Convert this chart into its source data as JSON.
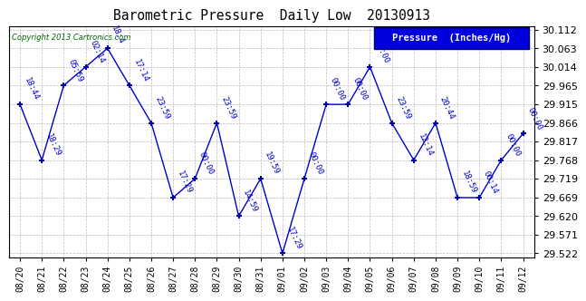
{
  "title": "Barometric Pressure  Daily Low  20130913",
  "copyright": "Copyright 2013 Cartronics.com",
  "legend_label": "Pressure  (Inches/Hg)",
  "dates": [
    "08/20",
    "08/21",
    "08/22",
    "08/23",
    "08/24",
    "08/25",
    "08/26",
    "08/27",
    "08/28",
    "08/29",
    "08/30",
    "08/31",
    "09/01",
    "09/02",
    "09/03",
    "09/04",
    "09/05",
    "09/06",
    "09/07",
    "09/08",
    "09/09",
    "09/10",
    "09/11",
    "09/12"
  ],
  "values": [
    29.915,
    29.768,
    29.965,
    30.014,
    30.063,
    29.965,
    29.866,
    29.669,
    29.719,
    29.866,
    29.62,
    29.719,
    29.522,
    29.719,
    29.915,
    29.915,
    30.014,
    29.866,
    29.768,
    29.866,
    29.669,
    29.669,
    29.768,
    29.838
  ],
  "labels": [
    "18:44",
    "18:29",
    "05:59",
    "02:14",
    "18:4",
    "17:14",
    "23:59",
    "17:29",
    "00:00",
    "23:59",
    "14:59",
    "19:59",
    "17:29",
    "00:00",
    "00:00",
    "00:00",
    "00:00",
    "23:59",
    "12:14",
    "20:44",
    "18:59",
    "00:14",
    "00:00",
    "00:00"
  ],
  "yticks": [
    29.522,
    29.571,
    29.62,
    29.669,
    29.719,
    29.768,
    29.817,
    29.866,
    29.915,
    29.965,
    30.014,
    30.063,
    30.112
  ],
  "ylim_min": 29.522,
  "ylim_max": 30.112,
  "line_color": "#0000cc",
  "marker_color": "#0000aa",
  "grid_color": "#bbbbbb",
  "bg_color": "#ffffff",
  "title_color": "#000000",
  "legend_bg": "#0000dd",
  "legend_text_color": "#ffffff",
  "copyright_color": "#006600"
}
